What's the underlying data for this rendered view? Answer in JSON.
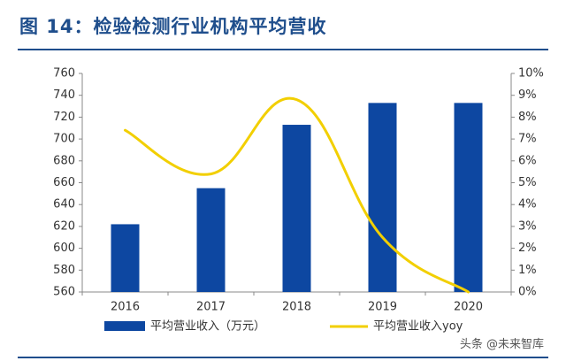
{
  "title": "图 14：检验检测行业机构平均营收",
  "watermark": "头条 @未来智库",
  "chart_data": {
    "type": "bar+line",
    "categories": [
      "2016",
      "2017",
      "2018",
      "2019",
      "2020"
    ],
    "series": [
      {
        "name": "平均营业收入（万元）",
        "type": "bar",
        "axis": "left",
        "color": "#0d47a1",
        "values": [
          622,
          655,
          713,
          733,
          733
        ]
      },
      {
        "name": "平均营业收入yoy",
        "type": "line",
        "axis": "right",
        "color": "#f2cf00",
        "values": [
          7.4,
          5.4,
          8.8,
          2.5,
          0.0
        ]
      }
    ],
    "ylim_left": [
      560,
      760
    ],
    "yticks_left": [
      "560",
      "580",
      "600",
      "620",
      "640",
      "660",
      "680",
      "700",
      "720",
      "740",
      "760"
    ],
    "ylim_right": [
      0,
      10
    ],
    "yticks_right": [
      "0%",
      "1%",
      "2%",
      "3%",
      "4%",
      "5%",
      "6%",
      "7%",
      "8%",
      "9%",
      "10%"
    ],
    "legend": [
      "平均营业收入（万元）",
      "平均营业收入yoy"
    ],
    "legend_position": "bottom"
  }
}
